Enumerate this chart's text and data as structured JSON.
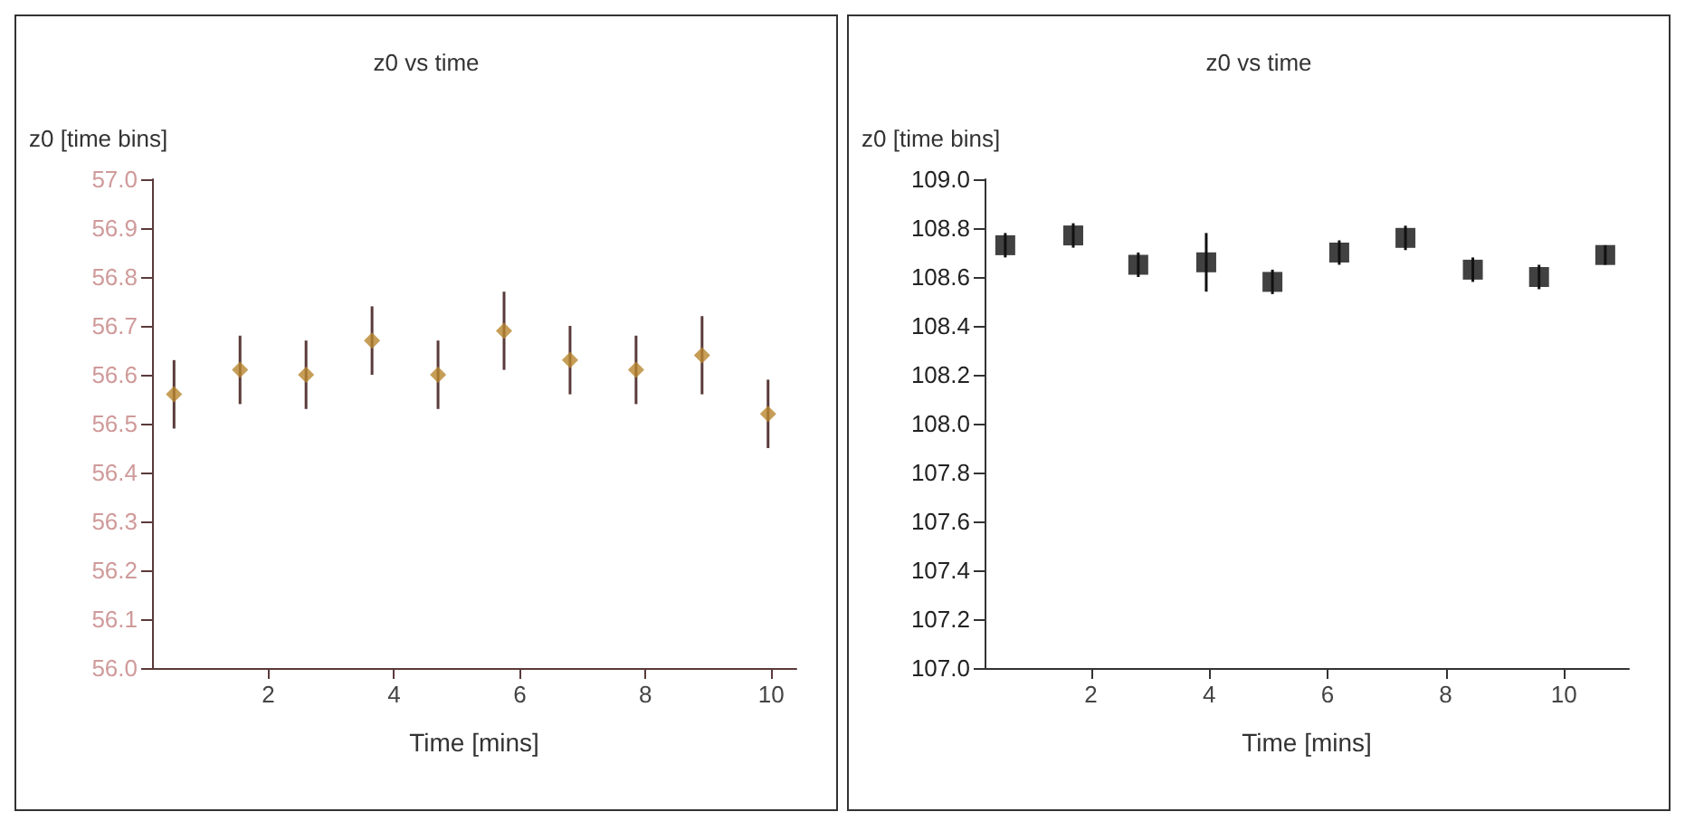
{
  "chart_data": [
    {
      "type": "scatter",
      "title": "z0 vs time",
      "xlabel": "Time [mins]",
      "ylabel": "z0 [time bins]",
      "marker": "diamond",
      "xlim": [
        0.15,
        10.4
      ],
      "xticks": [
        2,
        4,
        6,
        8,
        10
      ],
      "ylim": [
        56.0,
        57.0
      ],
      "yticks": [
        {
          "value": 56.0,
          "label": "56.0"
        },
        56.1,
        56.2,
        56.3,
        56.4,
        56.5,
        56.6,
        56.7,
        56.8,
        56.9,
        {
          "value": 57.0,
          "label": "57.0"
        }
      ],
      "series": [
        {
          "color": "#b8862e",
          "x": [
            0.5,
            1.55,
            2.6,
            3.65,
            4.7,
            5.75,
            6.8,
            7.85,
            8.9,
            9.95
          ],
          "values": [
            56.56,
            56.61,
            56.6,
            56.67,
            56.6,
            56.69,
            56.63,
            56.61,
            56.64,
            56.52
          ],
          "errors": [
            0.07,
            0.07,
            0.07,
            0.07,
            0.07,
            0.08,
            0.07,
            0.07,
            0.08,
            0.07
          ]
        }
      ]
    },
    {
      "type": "scatter",
      "title": "z0 vs time",
      "xlabel": "Time [mins]",
      "ylabel": "z0 [time bins]",
      "marker": "square",
      "xlim": [
        0.2,
        11.1
      ],
      "xticks": [
        2,
        4,
        6,
        8,
        10
      ],
      "ylim": [
        107.0,
        109.0
      ],
      "yticks": [
        {
          "value": 107.0,
          "label": "107.0"
        },
        107.2,
        107.4,
        107.6,
        107.8,
        {
          "value": 108.0,
          "label": "108.0"
        },
        108.2,
        108.4,
        108.6,
        108.8,
        {
          "value": 109.0,
          "label": "109.0"
        }
      ],
      "series": [
        {
          "color": "#111111",
          "x": [
            0.55,
            1.7,
            2.8,
            3.95,
            5.07,
            6.2,
            7.32,
            8.46,
            9.58,
            10.7
          ],
          "values": [
            108.73,
            108.77,
            108.65,
            108.66,
            108.58,
            108.7,
            108.76,
            108.63,
            108.6,
            108.69
          ],
          "errors": [
            0.05,
            0.05,
            0.05,
            0.12,
            0.05,
            0.05,
            0.05,
            0.05,
            0.05,
            0.04
          ]
        }
      ]
    }
  ]
}
